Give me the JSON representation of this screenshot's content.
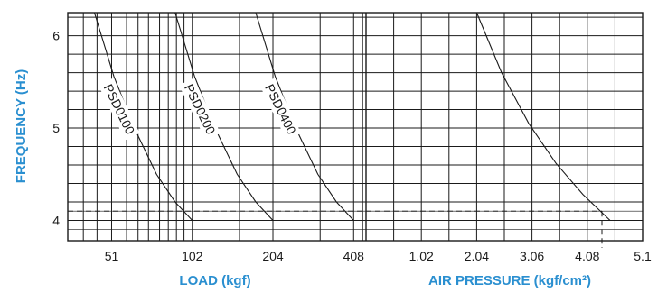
{
  "chart_data": [
    {
      "type": "line",
      "xlabel": "LOAD (kgf)",
      "ylabel": "FREQUENCY (Hz)",
      "x_scale": "log",
      "xlim": [
        35,
        440
      ],
      "ylim": [
        3.78,
        6.25
      ],
      "x_ticks": [
        "51",
        "102",
        "204",
        "408"
      ],
      "y_ticks": [
        "4",
        "5",
        "6"
      ],
      "grid": true,
      "series": [
        {
          "name": "PSD0100",
          "x": [
            44,
            52,
            62,
            75,
            88,
            102
          ],
          "y": [
            6.25,
            5.56,
            5.0,
            4.5,
            4.2,
            4.0
          ]
        },
        {
          "name": "PSD0200",
          "x": [
            88,
            104,
            124,
            150,
            176,
            204
          ],
          "y": [
            6.25,
            5.56,
            5.0,
            4.5,
            4.2,
            4.0
          ]
        },
        {
          "name": "PSD0400",
          "x": [
            176,
            208,
            248,
            300,
            352,
            408
          ],
          "y": [
            6.25,
            5.56,
            5.0,
            4.5,
            4.2,
            4.0
          ]
        }
      ],
      "reference_line": {
        "y": 4.1
      }
    },
    {
      "type": "line",
      "xlabel": "AIR PRESSURE (kgf/cm²)",
      "xlim": [
        0.0,
        5.1
      ],
      "ylim": [
        3.78,
        6.25
      ],
      "x_ticks": [
        "1.02",
        "2.04",
        "3.06",
        "4.08",
        "5.1"
      ],
      "grid": true,
      "series": [
        {
          "x": [
            2.04,
            2.5,
            3.0,
            3.5,
            4.0,
            4.5
          ],
          "y": [
            6.25,
            5.6,
            5.05,
            4.62,
            4.28,
            4.0
          ]
        }
      ],
      "reference_line": {
        "y": 4.1,
        "x": 4.35
      }
    }
  ]
}
